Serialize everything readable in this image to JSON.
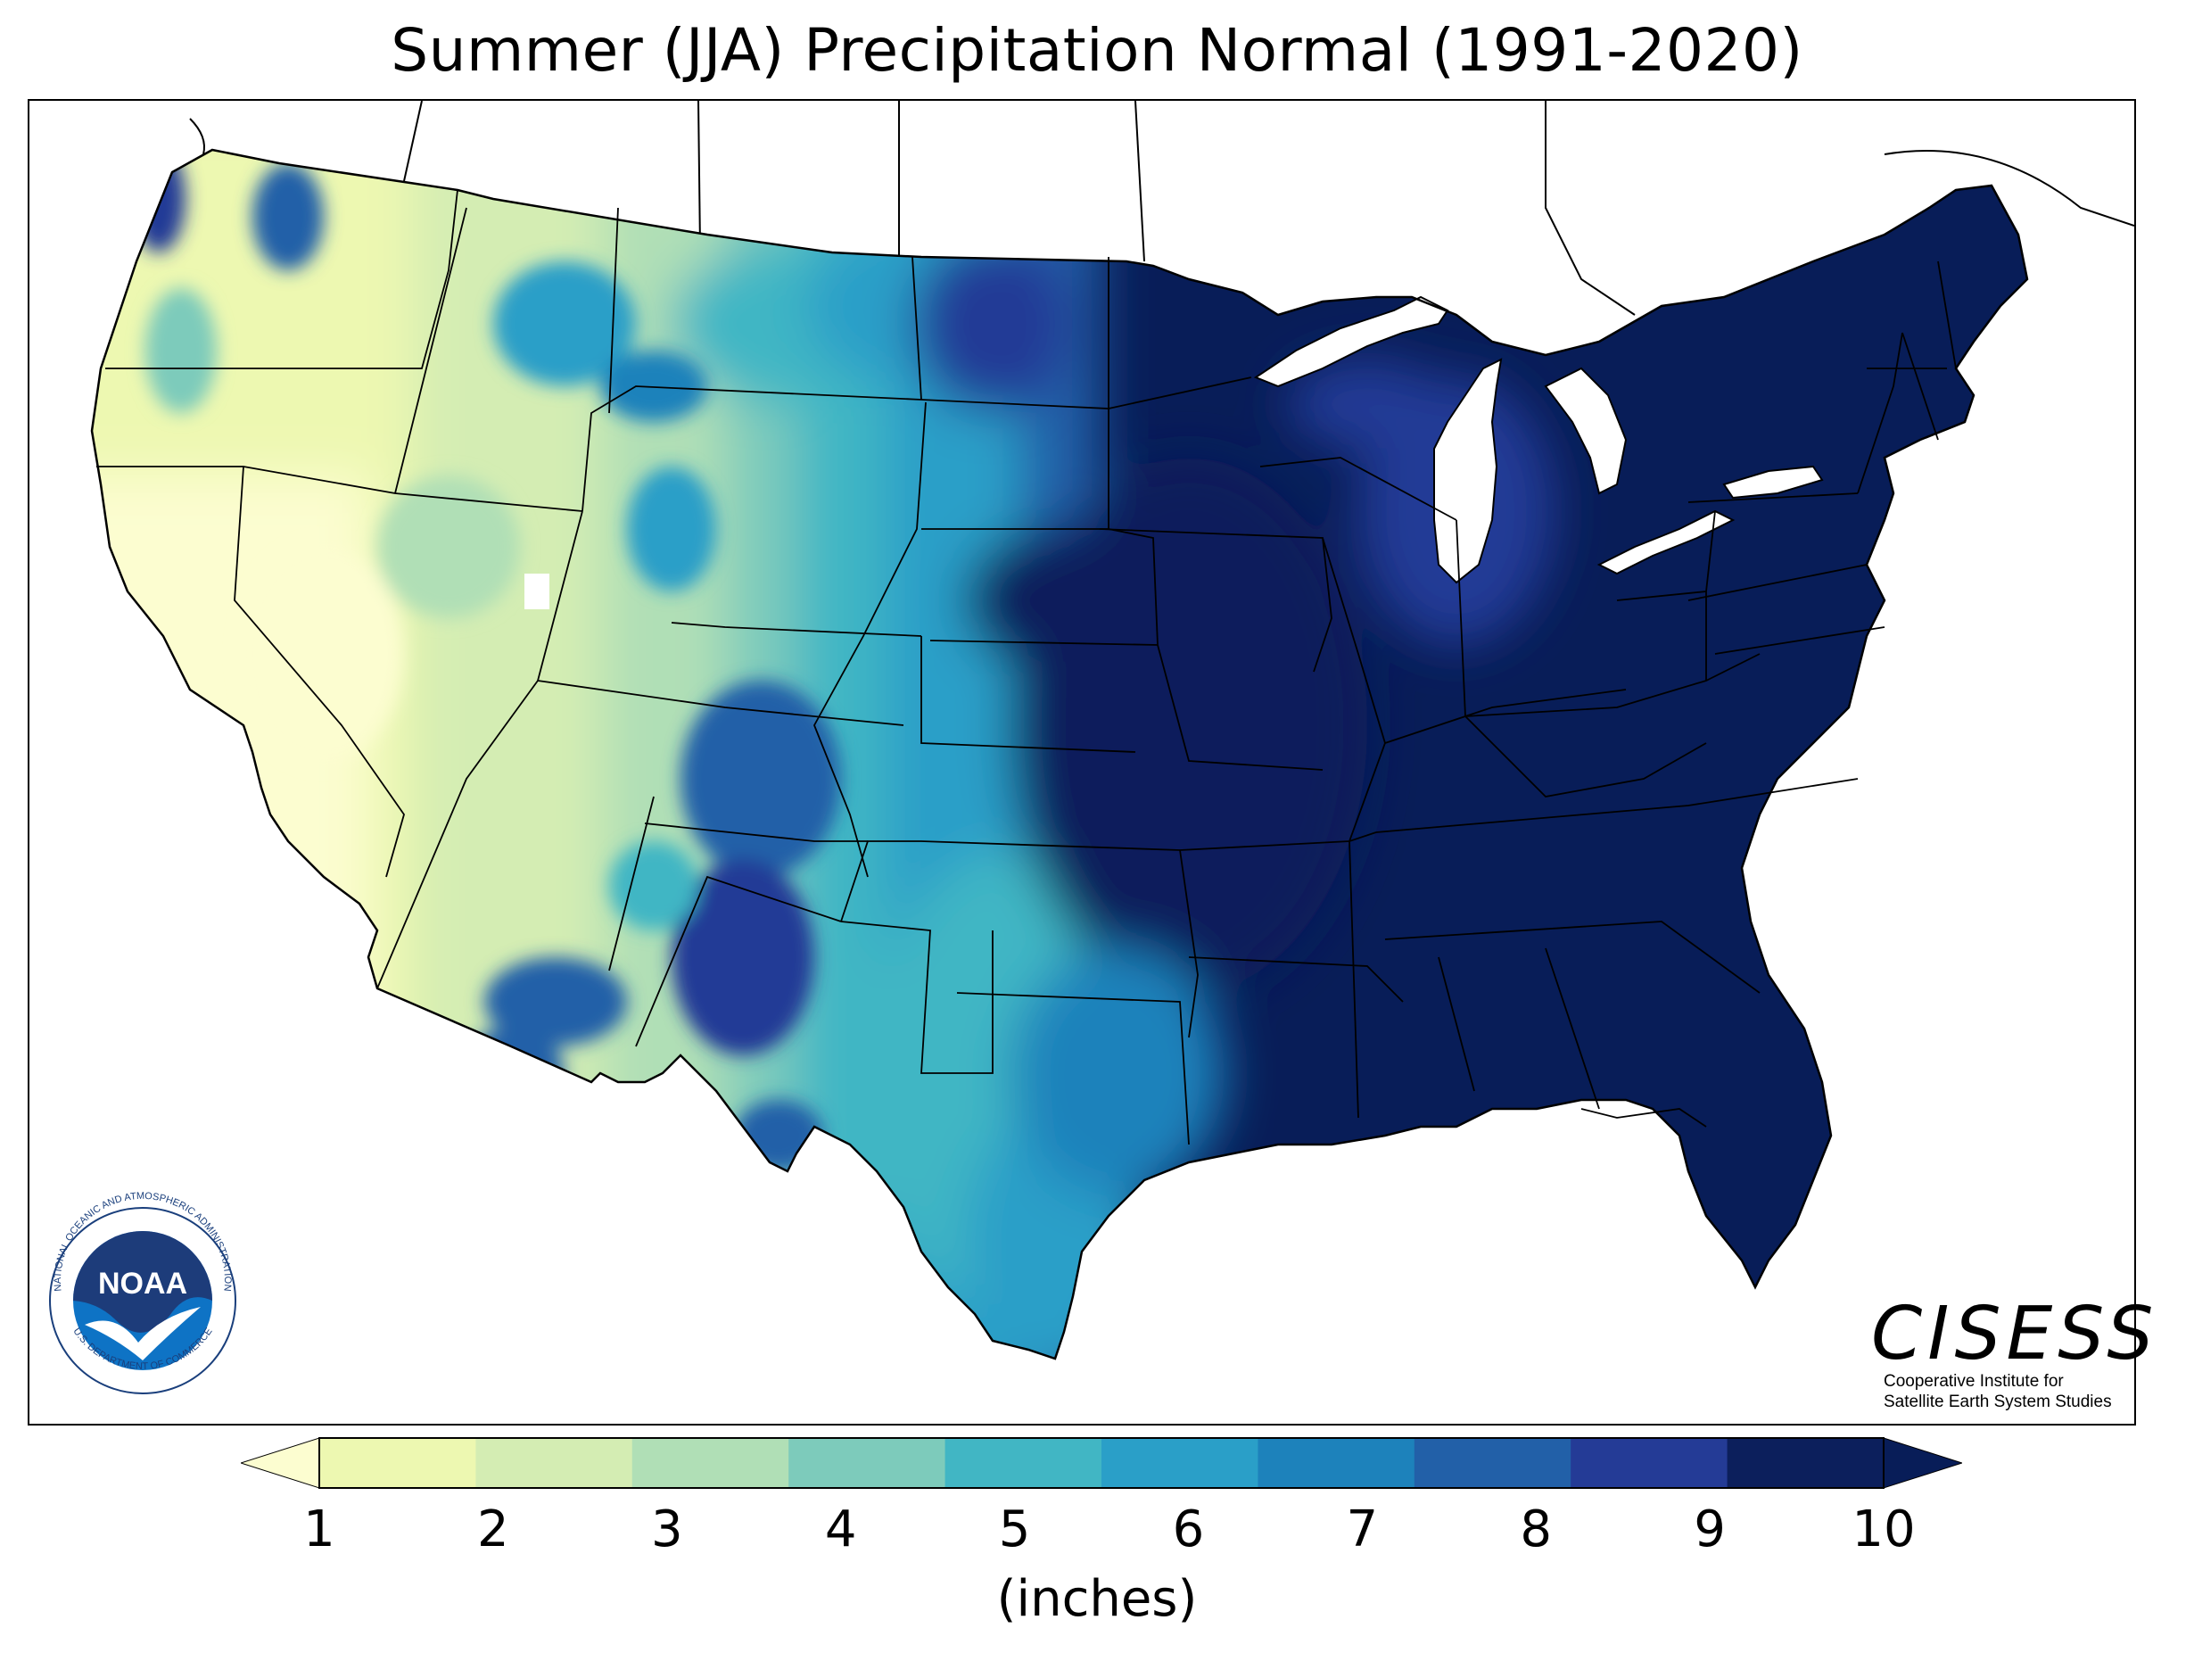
{
  "title": "Summer (JJA) Precipitation Normal (1991-2020)",
  "colorbar": {
    "label": "(inches)",
    "ticks": [
      "1",
      "2",
      "3",
      "4",
      "5",
      "6",
      "7",
      "8",
      "9",
      "10"
    ],
    "colors": [
      "#edf8b1",
      "#d4edb3",
      "#b0dfb6",
      "#7dcbbb",
      "#41b6c4",
      "#2a9fc8",
      "#1d82bb",
      "#2260a8",
      "#243b96",
      "#0c1f5c"
    ],
    "extend_low_color": "#fcfdd0",
    "extend_high_color": "#081d58"
  },
  "noaa_logo": {
    "text": "NOAA",
    "ring_text": "NATIONAL OCEANIC AND ATMOSPHERIC ADMINISTRATION",
    "ring_text_bottom": "U.S. DEPARTMENT OF COMMERCE"
  },
  "cisess": {
    "name": "CISESS",
    "line1": "Cooperative Institute for",
    "line2": "Satellite Earth System Studies"
  }
}
